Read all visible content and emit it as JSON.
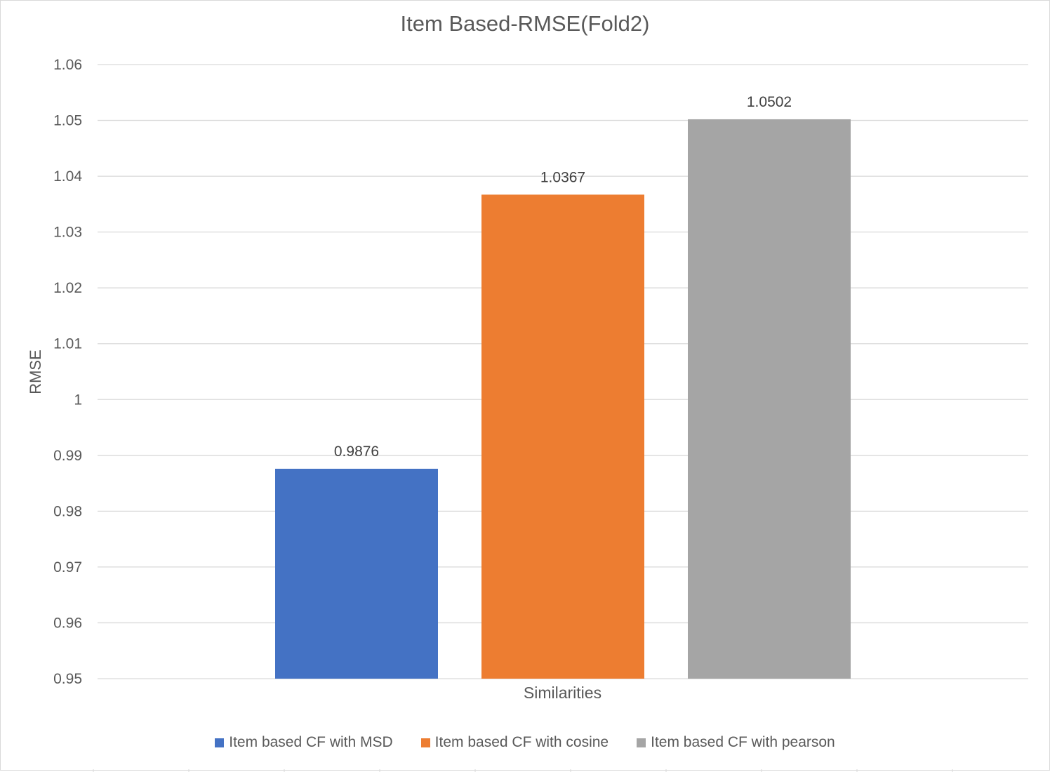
{
  "chart_data": {
    "type": "bar",
    "title": "Item Based-RMSE(Fold2)",
    "xlabel": "Similarities",
    "ylabel": "RMSE",
    "categories": [
      "Similarities"
    ],
    "series": [
      {
        "name": "Item based CF with MSD",
        "values": [
          0.9876
        ],
        "color": "#4472c4",
        "label": "0.9876"
      },
      {
        "name": "Item based CF with cosine",
        "values": [
          1.0367
        ],
        "color": "#ed7d31",
        "label": "1.0367"
      },
      {
        "name": "Item based CF with pearson",
        "values": [
          1.0502
        ],
        "color": "#a5a5a5",
        "label": "1.0502"
      }
    ],
    "ylim": [
      0.95,
      1.06
    ],
    "yticks": [
      "0.95",
      "0.96",
      "0.97",
      "0.98",
      "0.99",
      "1",
      "1.01",
      "1.02",
      "1.03",
      "1.04",
      "1.05",
      "1.06"
    ],
    "grid": true,
    "legend_position": "bottom",
    "gridline_color": "#d9d9d9"
  }
}
